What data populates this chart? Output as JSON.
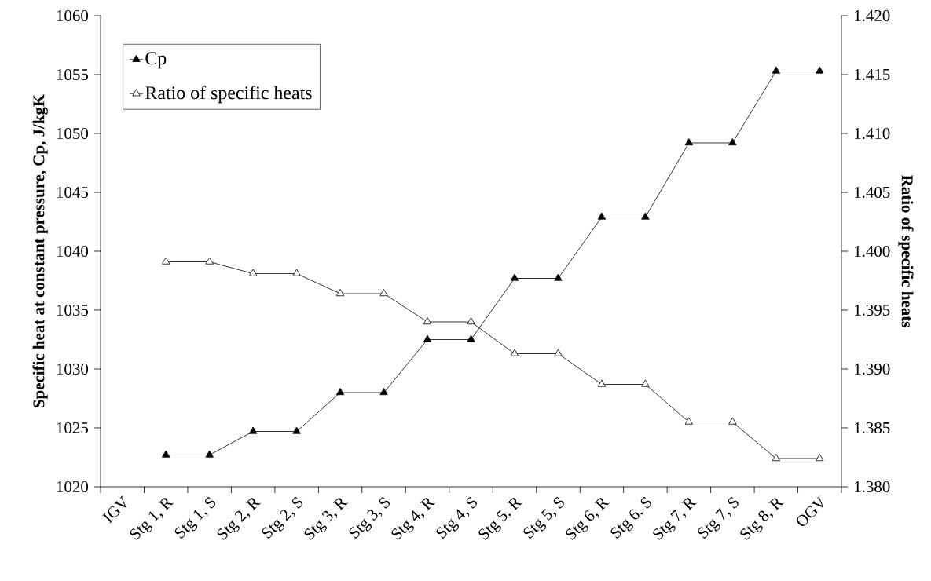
{
  "chart_data": {
    "type": "line",
    "ylabel": "Specific heat at constant pressure, Cp, J/kgK",
    "y2label": "Ratio of specific heats",
    "categories": [
      "IGV",
      "Stg 1, R",
      "Stg 1, S",
      "Stg 2, R",
      "Stg 2, S",
      "Stg 3, R",
      "Stg 3, S",
      "Stg 4, R",
      "Stg 4, S",
      "Stg 5, R",
      "Stg 5, S",
      "Stg 6, R",
      "Stg 6, S",
      "Stg 7, R",
      "Stg 7, S",
      "Stg 8, R",
      "OGV"
    ],
    "series": [
      {
        "name": "Cp",
        "color": "#000000",
        "values": [
          null,
          1022.7,
          1022.7,
          1024.7,
          1024.7,
          1028.0,
          1028.0,
          1032.5,
          1032.5,
          1037.7,
          1037.7,
          1042.9,
          1042.9,
          1049.2,
          1049.2,
          1055.3,
          1055.3
        ]
      },
      {
        "name": "Ratio of specific heats",
        "color": "#000000",
        "axis": "y2",
        "values": [
          null,
          1.3991,
          1.3991,
          1.3981,
          1.3981,
          1.3964,
          1.3964,
          1.394,
          1.394,
          1.3913,
          1.3913,
          1.3887,
          1.3887,
          1.3855,
          1.3855,
          1.3824,
          1.3824
        ]
      }
    ],
    "ylim": [
      1020,
      1060
    ],
    "yticks": [
      1020,
      1025,
      1030,
      1035,
      1040,
      1045,
      1050,
      1055,
      1060
    ],
    "y2lim": [
      1.38,
      1.42
    ],
    "y2ticks": [
      {
        "value": 1.38,
        "label": "1.380"
      },
      {
        "value": 1.385,
        "label": "1.385"
      },
      {
        "value": 1.39,
        "label": "1.390"
      },
      {
        "value": 1.395,
        "label": "1.395"
      },
      {
        "value": 1.4,
        "label": "1.400"
      },
      {
        "value": 1.405,
        "label": "1.405"
      },
      {
        "value": 1.41,
        "label": "1.410"
      },
      {
        "value": 1.415,
        "label": "1.415"
      },
      {
        "value": 1.42,
        "label": "1.420"
      }
    ],
    "grid": false,
    "legend": "top left",
    "marker": "triangle",
    "line_style": "solid"
  }
}
